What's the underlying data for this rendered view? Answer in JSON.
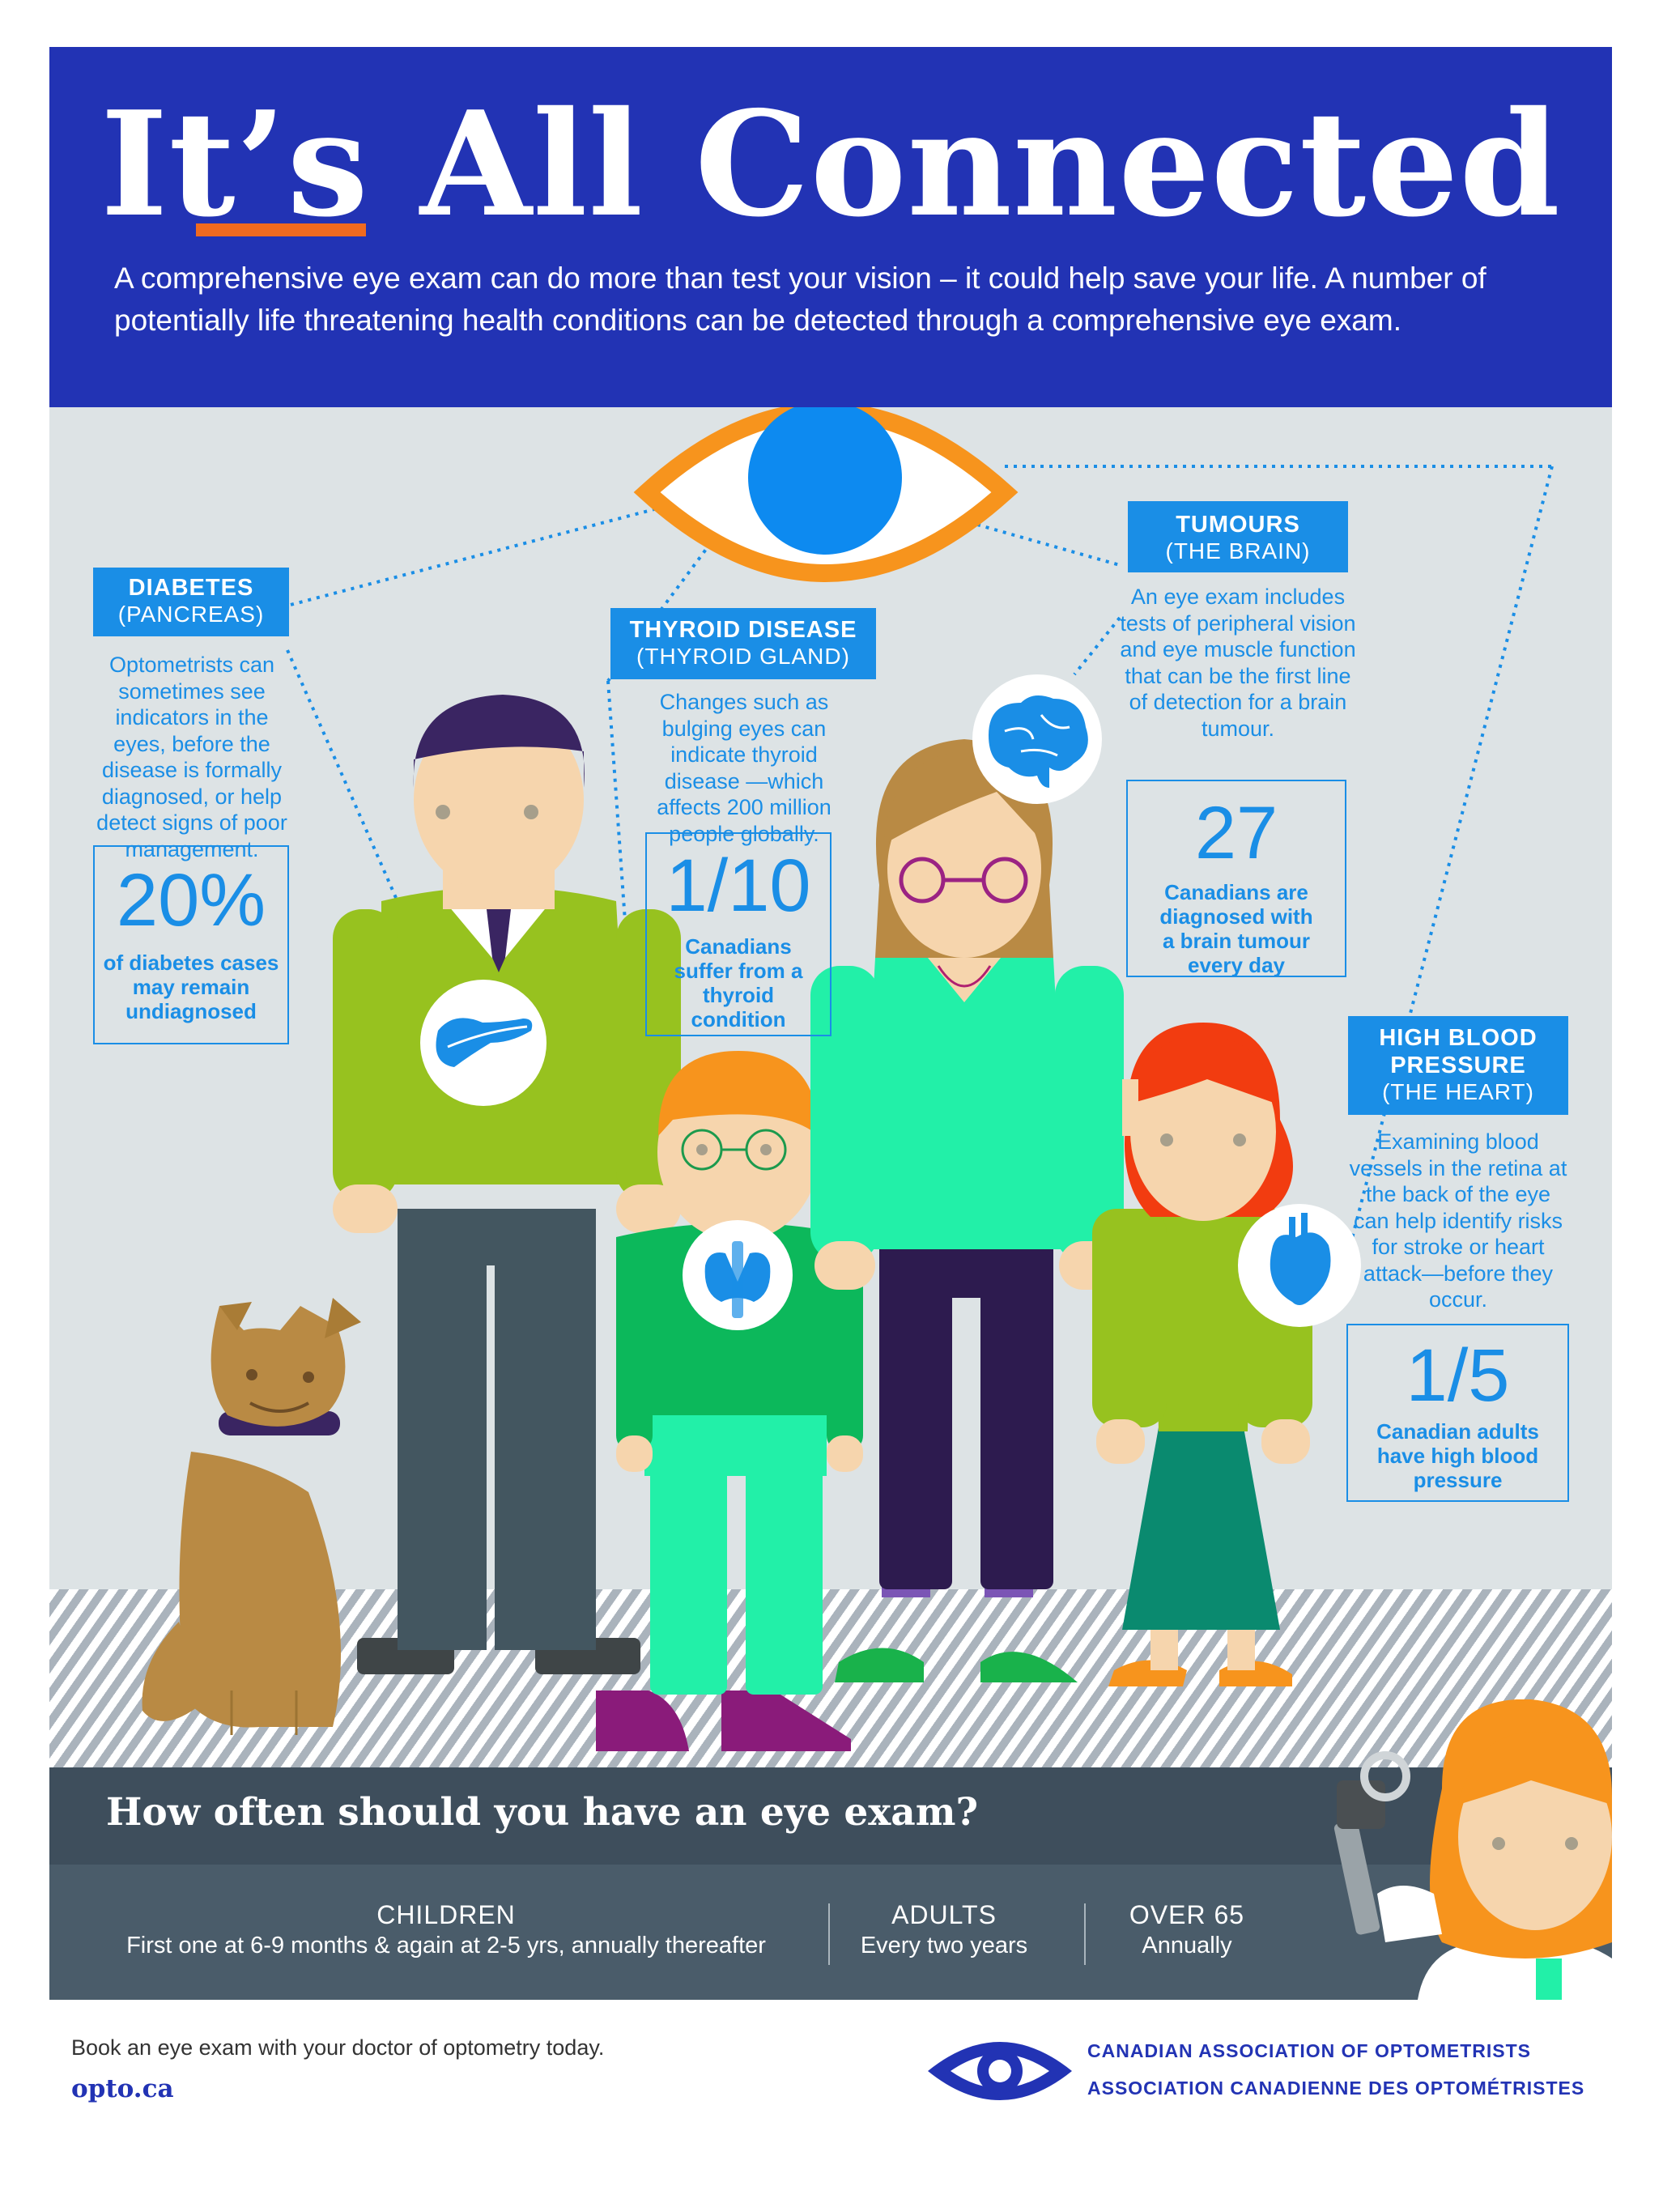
{
  "header": {
    "title": "It’s All Connected",
    "intro": "A comprehensive eye exam can do more than test your vision – it could help save your life. A number of potentially life threatening health conditions can be detected through a comprehensive eye exam."
  },
  "colors": {
    "header_blue": "#2233b4",
    "accent_blue": "#1a8ee6",
    "orange": "#f06a1f",
    "panel_gray": "#dde3e5",
    "band_slate": "#4a5c6a"
  },
  "conditions": {
    "diabetes": {
      "title": "DIABETES",
      "subtitle": "(PANCREAS)",
      "body": "Optometrists can sometimes see indicators in the eyes, before the disease is formally diagnosed, or help detect signs of poor management.",
      "stat": "20%",
      "stat_text": "of diabetes cases may remain undiagnosed",
      "icon": "pancreas-icon"
    },
    "thyroid": {
      "title": "THYROID DISEASE",
      "subtitle": "(THYROID GLAND)",
      "body": "Changes such as bulging eyes can indicate thyroid disease —which affects 200 million people globally.",
      "stat": "1/10",
      "stat_text": "Canadians suffer from a thyroid condition",
      "icon": "thyroid-icon"
    },
    "tumours": {
      "title": "TUMOURS",
      "subtitle": "(THE BRAIN)",
      "body": "An eye exam includes tests of peripheral vision and eye muscle function that can be the first line of detection for a brain tumour.",
      "stat": "27",
      "stat_text": "Canadians are diagnosed with a brain tumour every day",
      "icon": "brain-icon"
    },
    "blood_pressure": {
      "title": "HIGH BLOOD PRESSURE",
      "subtitle": "(THE HEART)",
      "body": "Examining blood vessels in the retina at the back of the eye can help identify risks for stroke or heart attack—before they occur.",
      "stat": "1/5",
      "stat_text": "Canadian adults have high blood pressure",
      "icon": "heart-icon"
    }
  },
  "frequency": {
    "question": "How often should you have an eye exam?",
    "children_label": "CHILDREN",
    "children_text": "First one at 6-9 months & again at 2-5 yrs, annually thereafter",
    "adults_label": "ADULTS",
    "adults_text": "Every two years",
    "seniors_label": "OVER 65",
    "seniors_text": "Annually"
  },
  "footer": {
    "cta": "Book an eye exam with your doctor of optometry today.",
    "url": "opto.ca",
    "org_en": "CANADIAN ASSOCIATION OF OPTOMETRISTS",
    "org_fr": "ASSOCIATION CANADIENNE DES OPTOMÉTRISTES"
  }
}
